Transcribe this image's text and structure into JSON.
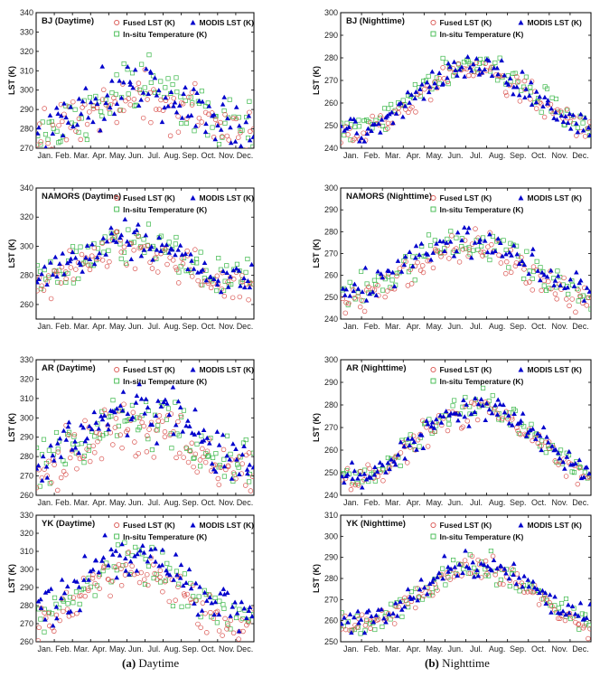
{
  "captions": {
    "left_label": "(a)",
    "left_text": "Daytime",
    "right_label": "(b)",
    "right_text": "Nighttime"
  },
  "legend": {
    "fused": "Fused LST (K)",
    "modis": "MODIS LST (K)",
    "insitu": "In-situ Temperature (K)"
  },
  "colors": {
    "fused": "#d9534f",
    "modis": "#0000cc",
    "insitu": "#3cb84a",
    "axis": "#000000"
  },
  "months": [
    "Jan.",
    "Feb.",
    "Mar.",
    "Apr.",
    "May.",
    "Jun.",
    "Jul.",
    "Aug.",
    "Sep.",
    "Oct.",
    "Nov.",
    "Dec."
  ],
  "chart_data": [
    {
      "type": "scatter",
      "title": "BJ (Daytime)",
      "ylabel": "LST (K)",
      "ylim": [
        270,
        340
      ],
      "yticks": [
        270,
        280,
        290,
        300,
        310,
        320,
        330,
        340
      ],
      "xlim": [
        0,
        365
      ],
      "profile": {
        "winter": 278,
        "summer": 300,
        "peak_day": 175,
        "spread": 7
      },
      "series": [
        {
          "name": "Fused LST (K)",
          "n": 95,
          "bias": -3
        },
        {
          "name": "MODIS LST (K)",
          "n": 95,
          "bias": 2
        },
        {
          "name": "In-situ Temperature (K)",
          "n": 90,
          "bias": 0
        }
      ]
    },
    {
      "type": "scatter",
      "title": "BJ (Nighttime)",
      "ylabel": "LST (K)",
      "ylim": [
        240,
        300
      ],
      "yticks": [
        240,
        250,
        260,
        270,
        280,
        290,
        300
      ],
      "xlim": [
        0,
        365
      ],
      "profile": {
        "winter": 248,
        "summer": 276,
        "peak_day": 195,
        "spread": 3
      },
      "series": [
        {
          "name": "Fused LST (K)",
          "n": 95,
          "bias": -1
        },
        {
          "name": "MODIS LST (K)",
          "n": 110,
          "bias": 0
        },
        {
          "name": "In-situ Temperature (K)",
          "n": 95,
          "bias": 1
        }
      ]
    },
    {
      "type": "scatter",
      "title": "NAMORS (Daytime)",
      "ylabel": "LST (K)",
      "ylim": [
        250,
        340
      ],
      "yticks": [
        260,
        280,
        300,
        320,
        340
      ],
      "xlim": [
        0,
        365
      ],
      "profile": {
        "winter": 276,
        "summer": 302,
        "peak_day": 160,
        "spread": 6
      },
      "series": [
        {
          "name": "Fused LST (K)",
          "n": 95,
          "bias": -3
        },
        {
          "name": "MODIS LST (K)",
          "n": 90,
          "bias": 2
        },
        {
          "name": "In-situ Temperature (K)",
          "n": 95,
          "bias": 1
        }
      ]
    },
    {
      "type": "scatter",
      "title": "NAMORS (Nighttime)",
      "ylabel": "LST (K)",
      "ylim": [
        240,
        300
      ],
      "yticks": [
        240,
        250,
        260,
        270,
        280,
        290,
        300
      ],
      "xlim": [
        0,
        365
      ],
      "profile": {
        "winter": 252,
        "summer": 276,
        "peak_day": 190,
        "spread": 4
      },
      "series": [
        {
          "name": "Fused LST (K)",
          "n": 100,
          "bias": -3
        },
        {
          "name": "MODIS LST (K)",
          "n": 90,
          "bias": 1
        },
        {
          "name": "In-situ Temperature (K)",
          "n": 95,
          "bias": 0
        }
      ]
    },
    {
      "type": "scatter",
      "title": "AR (Daytime)",
      "ylabel": "LST (K)",
      "ylim": [
        260,
        330
      ],
      "yticks": [
        260,
        270,
        280,
        290,
        300,
        310,
        320,
        330
      ],
      "xlim": [
        0,
        365
      ],
      "profile": {
        "winter": 276,
        "summer": 300,
        "peak_day": 170,
        "spread": 7
      },
      "series": [
        {
          "name": "Fused LST (K)",
          "n": 110,
          "bias": -5
        },
        {
          "name": "MODIS LST (K)",
          "n": 100,
          "bias": 4
        },
        {
          "name": "In-situ Temperature (K)",
          "n": 95,
          "bias": 0
        }
      ]
    },
    {
      "type": "scatter",
      "title": "AR (Nighttime)",
      "ylabel": "LST (K)",
      "ylim": [
        240,
        300
      ],
      "yticks": [
        240,
        250,
        260,
        270,
        280,
        290,
        300
      ],
      "xlim": [
        0,
        365
      ],
      "profile": {
        "winter": 248,
        "summer": 279,
        "peak_day": 200,
        "spread": 3
      },
      "series": [
        {
          "name": "Fused LST (K)",
          "n": 95,
          "bias": -1
        },
        {
          "name": "MODIS LST (K)",
          "n": 110,
          "bias": 0
        },
        {
          "name": "In-situ Temperature (K)",
          "n": 95,
          "bias": 1
        }
      ]
    },
    {
      "type": "scatter",
      "title": "YK (Daytime)",
      "ylabel": "LST (K)",
      "ylim": [
        260,
        330
      ],
      "yticks": [
        260,
        270,
        280,
        290,
        300,
        310,
        320,
        330
      ],
      "xlim": [
        0,
        365
      ],
      "profile": {
        "winter": 272,
        "summer": 305,
        "peak_day": 160,
        "spread": 6
      },
      "series": [
        {
          "name": "Fused LST (K)",
          "n": 100,
          "bias": -5
        },
        {
          "name": "MODIS LST (K)",
          "n": 95,
          "bias": 4
        },
        {
          "name": "In-situ Temperature (K)",
          "n": 80,
          "bias": -1
        }
      ]
    },
    {
      "type": "scatter",
      "title": "YK (Nighttime)",
      "ylabel": "LST (K)",
      "ylim": [
        250,
        310
      ],
      "yticks": [
        250,
        260,
        270,
        280,
        290,
        300,
        310
      ],
      "xlim": [
        0,
        365
      ],
      "profile": {
        "winter": 258,
        "summer": 286,
        "peak_day": 200,
        "spread": 3
      },
      "series": [
        {
          "name": "Fused LST (K)",
          "n": 100,
          "bias": -1
        },
        {
          "name": "MODIS LST (K)",
          "n": 100,
          "bias": 1
        },
        {
          "name": "In-situ Temperature (K)",
          "n": 90,
          "bias": 0
        }
      ]
    }
  ]
}
